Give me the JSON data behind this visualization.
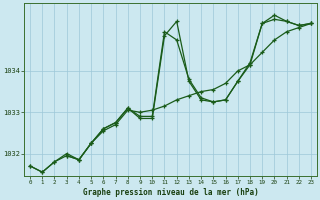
{
  "background_color": "#cce8f0",
  "grid_color": "#9dc8d8",
  "line_color": "#1a5c1a",
  "xlabel": "Graphe pression niveau de la mer (hPa)",
  "xlim": [
    -0.5,
    23.5
  ],
  "ylim": [
    1031.45,
    1035.65
  ],
  "yticks": [
    1032,
    1033,
    1034
  ],
  "ytick_labels": [
    "1032",
    "1033",
    "1034"
  ],
  "xticks": [
    0,
    1,
    2,
    3,
    4,
    5,
    6,
    7,
    8,
    9,
    10,
    11,
    12,
    13,
    14,
    15,
    16,
    17,
    18,
    19,
    20,
    21,
    22,
    23
  ],
  "s1_x": [
    0,
    1,
    2,
    3,
    4,
    5,
    6,
    7,
    8,
    9,
    10,
    11,
    12,
    13,
    14,
    15,
    16,
    17,
    18,
    19,
    20,
    21,
    22,
    23
  ],
  "s1_y": [
    1031.7,
    1031.55,
    1031.8,
    1031.95,
    1031.85,
    1032.25,
    1032.55,
    1032.7,
    1033.05,
    1033.0,
    1033.05,
    1033.15,
    1033.3,
    1033.4,
    1033.5,
    1033.55,
    1033.7,
    1034.0,
    1034.15,
    1034.45,
    1034.75,
    1034.95,
    1035.05,
    1035.15
  ],
  "s2_x": [
    0,
    1,
    2,
    3,
    4,
    5,
    6,
    7,
    8,
    9,
    10,
    11,
    12,
    13,
    14,
    15,
    16,
    17,
    18,
    19,
    20,
    21,
    22,
    23
  ],
  "s2_y": [
    1031.7,
    1031.55,
    1031.8,
    1032.0,
    1031.85,
    1032.25,
    1032.6,
    1032.75,
    1033.1,
    1032.85,
    1032.85,
    1034.85,
    1035.2,
    1033.75,
    1033.3,
    1033.25,
    1033.3,
    1033.75,
    1034.15,
    1035.15,
    1035.25,
    1035.2,
    1035.1,
    1035.15
  ],
  "s3_x": [
    3,
    4,
    5,
    6,
    7,
    8,
    9,
    10,
    11,
    12,
    13,
    14,
    15,
    16,
    17,
    18,
    19,
    20,
    21,
    22,
    23
  ],
  "s3_y": [
    1031.95,
    1031.85,
    1032.25,
    1032.6,
    1032.75,
    1033.1,
    1032.9,
    1032.9,
    1034.95,
    1034.75,
    1033.8,
    1033.35,
    1033.25,
    1033.3,
    1033.75,
    1034.2,
    1035.15,
    1035.35,
    1035.2,
    1035.1,
    1035.15
  ]
}
